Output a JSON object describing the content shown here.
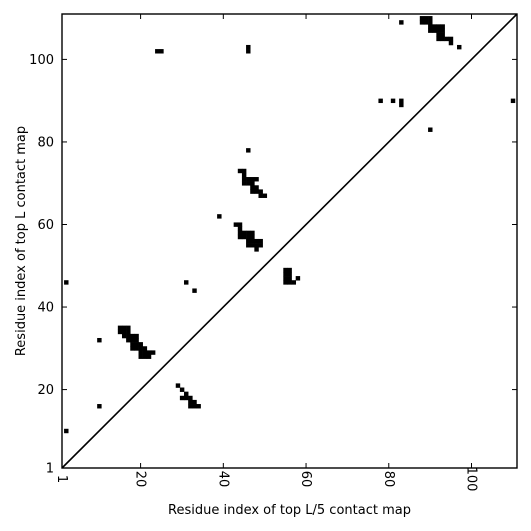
{
  "chart_data": {
    "type": "heatmap",
    "title": "",
    "xlabel": "Residue index of top L/5 contact map",
    "ylabel": "Residue index of top L contact map",
    "xlim": [
      1,
      111
    ],
    "ylim": [
      1,
      111
    ],
    "xticks": [
      1,
      20,
      40,
      60,
      80,
      100
    ],
    "yticks": [
      1,
      20,
      40,
      60,
      80,
      100
    ],
    "grid": false,
    "diagonal": true,
    "cell_color": "#000000",
    "contacts_top_left": [
      [
        2,
        10
      ],
      [
        2,
        46
      ],
      [
        10,
        16
      ],
      [
        10,
        32
      ],
      [
        15,
        34
      ],
      [
        15,
        35
      ],
      [
        16,
        33
      ],
      [
        16,
        34
      ],
      [
        16,
        35
      ],
      [
        17,
        32
      ],
      [
        17,
        33
      ],
      [
        17,
        34
      ],
      [
        17,
        35
      ],
      [
        18,
        30
      ],
      [
        18,
        31
      ],
      [
        18,
        32
      ],
      [
        18,
        33
      ],
      [
        19,
        30
      ],
      [
        19,
        31
      ],
      [
        19,
        32
      ],
      [
        19,
        33
      ],
      [
        20,
        28
      ],
      [
        20,
        29
      ],
      [
        20,
        30
      ],
      [
        20,
        31
      ],
      [
        21,
        28
      ],
      [
        21,
        29
      ],
      [
        21,
        30
      ],
      [
        22,
        28
      ],
      [
        22,
        29
      ],
      [
        23,
        29
      ],
      [
        24,
        102
      ],
      [
        25,
        102
      ],
      [
        29,
        21
      ],
      [
        30,
        18
      ],
      [
        30,
        20
      ],
      [
        31,
        18
      ],
      [
        31,
        19
      ],
      [
        31,
        46
      ],
      [
        32,
        16
      ],
      [
        32,
        17
      ],
      [
        32,
        18
      ],
      [
        33,
        16
      ],
      [
        33,
        17
      ],
      [
        33,
        44
      ],
      [
        34,
        16
      ],
      [
        39,
        62
      ],
      [
        43,
        60
      ],
      [
        44,
        57
      ],
      [
        44,
        58
      ],
      [
        44,
        59
      ],
      [
        44,
        60
      ],
      [
        44,
        73
      ],
      [
        45,
        57
      ],
      [
        45,
        58
      ],
      [
        45,
        70
      ],
      [
        45,
        71
      ],
      [
        45,
        72
      ],
      [
        45,
        73
      ],
      [
        46,
        55
      ],
      [
        46,
        56
      ],
      [
        46,
        57
      ],
      [
        46,
        58
      ],
      [
        46,
        70
      ],
      [
        46,
        71
      ],
      [
        46,
        78
      ],
      [
        46,
        102
      ],
      [
        46,
        103
      ],
      [
        47,
        55
      ],
      [
        47,
        56
      ],
      [
        47,
        57
      ],
      [
        47,
        58
      ],
      [
        47,
        68
      ],
      [
        47,
        69
      ],
      [
        47,
        70
      ],
      [
        47,
        71
      ],
      [
        48,
        54
      ],
      [
        48,
        55
      ],
      [
        48,
        56
      ],
      [
        48,
        68
      ],
      [
        48,
        69
      ],
      [
        48,
        71
      ],
      [
        49,
        55
      ],
      [
        49,
        56
      ],
      [
        49,
        67
      ],
      [
        49,
        68
      ],
      [
        50,
        67
      ],
      [
        55,
        46
      ],
      [
        55,
        47
      ],
      [
        55,
        48
      ],
      [
        55,
        49
      ],
      [
        56,
        46
      ],
      [
        56,
        47
      ],
      [
        56,
        48
      ],
      [
        56,
        49
      ],
      [
        57,
        46
      ],
      [
        58,
        47
      ]
    ],
    "contacts_bottom_right": [
      [
        78,
        90
      ],
      [
        81,
        90
      ],
      [
        83,
        89
      ],
      [
        83,
        90
      ],
      [
        83,
        109
      ],
      [
        88,
        109
      ],
      [
        88,
        110
      ],
      [
        89,
        109
      ],
      [
        89,
        110
      ],
      [
        90,
        83
      ],
      [
        90,
        107
      ],
      [
        90,
        108
      ],
      [
        90,
        109
      ],
      [
        90,
        110
      ],
      [
        91,
        107
      ],
      [
        91,
        108
      ],
      [
        92,
        105
      ],
      [
        92,
        106
      ],
      [
        92,
        107
      ],
      [
        92,
        108
      ],
      [
        93,
        105
      ],
      [
        93,
        106
      ],
      [
        93,
        107
      ],
      [
        93,
        108
      ],
      [
        94,
        105
      ],
      [
        95,
        104
      ],
      [
        95,
        105
      ],
      [
        97,
        103
      ],
      [
        110,
        90
      ]
    ]
  }
}
